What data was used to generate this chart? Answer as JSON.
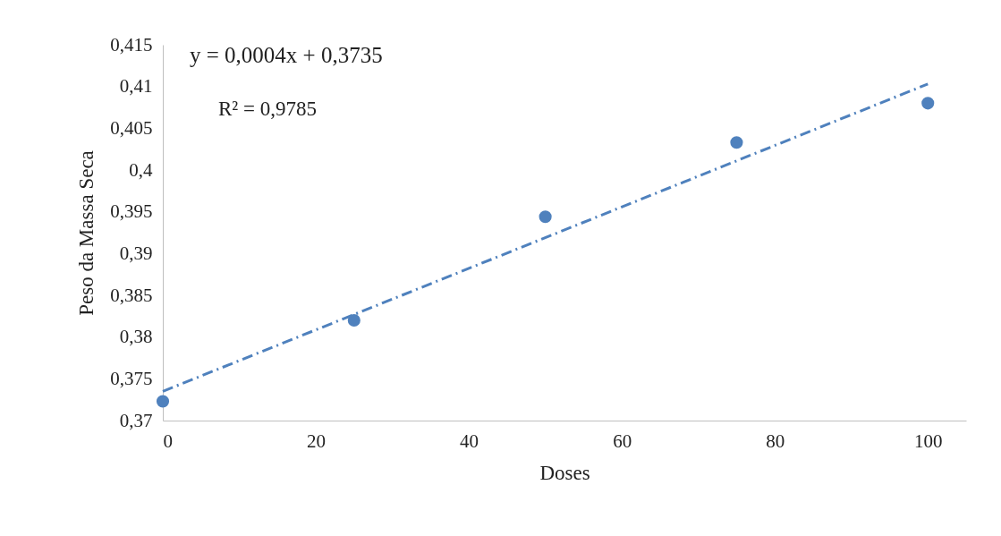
{
  "chart_data": {
    "type": "scatter",
    "xlabel": "Doses",
    "ylabel": "Peso da Massa Seca",
    "annotations": [
      "y = 0,0004x + 0,3735",
      "R² = 0,9785"
    ],
    "series": [
      {
        "color": "#4f81bd",
        "marker": "circle",
        "x": [
          0,
          25,
          50,
          75,
          100
        ],
        "values": [
          0.3723,
          0.382,
          0.3944,
          0.4033,
          0.408
        ]
      },
      {
        "type": "line",
        "color": "#4f81bd",
        "marker": "none",
        "line_style": "dashed",
        "x": [
          0,
          100
        ],
        "values": [
          0.3735,
          0.4103
        ]
      }
    ],
    "xlim": [
      0,
      105
    ],
    "xticks": [
      0,
      20,
      40,
      60,
      80,
      100
    ],
    "ylim": [
      0.37,
      0.415
    ],
    "yticks": [
      {
        "value": 0.37,
        "label": "0,37"
      },
      {
        "value": 0.375,
        "label": "0,375"
      },
      {
        "value": 0.38,
        "label": "0,38"
      },
      {
        "value": 0.385,
        "label": "0,385"
      },
      {
        "value": 0.39,
        "label": "0,39"
      },
      {
        "value": 0.395,
        "label": "0,395"
      },
      {
        "value": 0.4,
        "label": "0,4"
      },
      {
        "value": 0.405,
        "label": "0,405"
      },
      {
        "value": 0.41,
        "label": "0,41"
      },
      {
        "value": 0.415,
        "label": "0,415"
      }
    ],
    "grid": false
  }
}
